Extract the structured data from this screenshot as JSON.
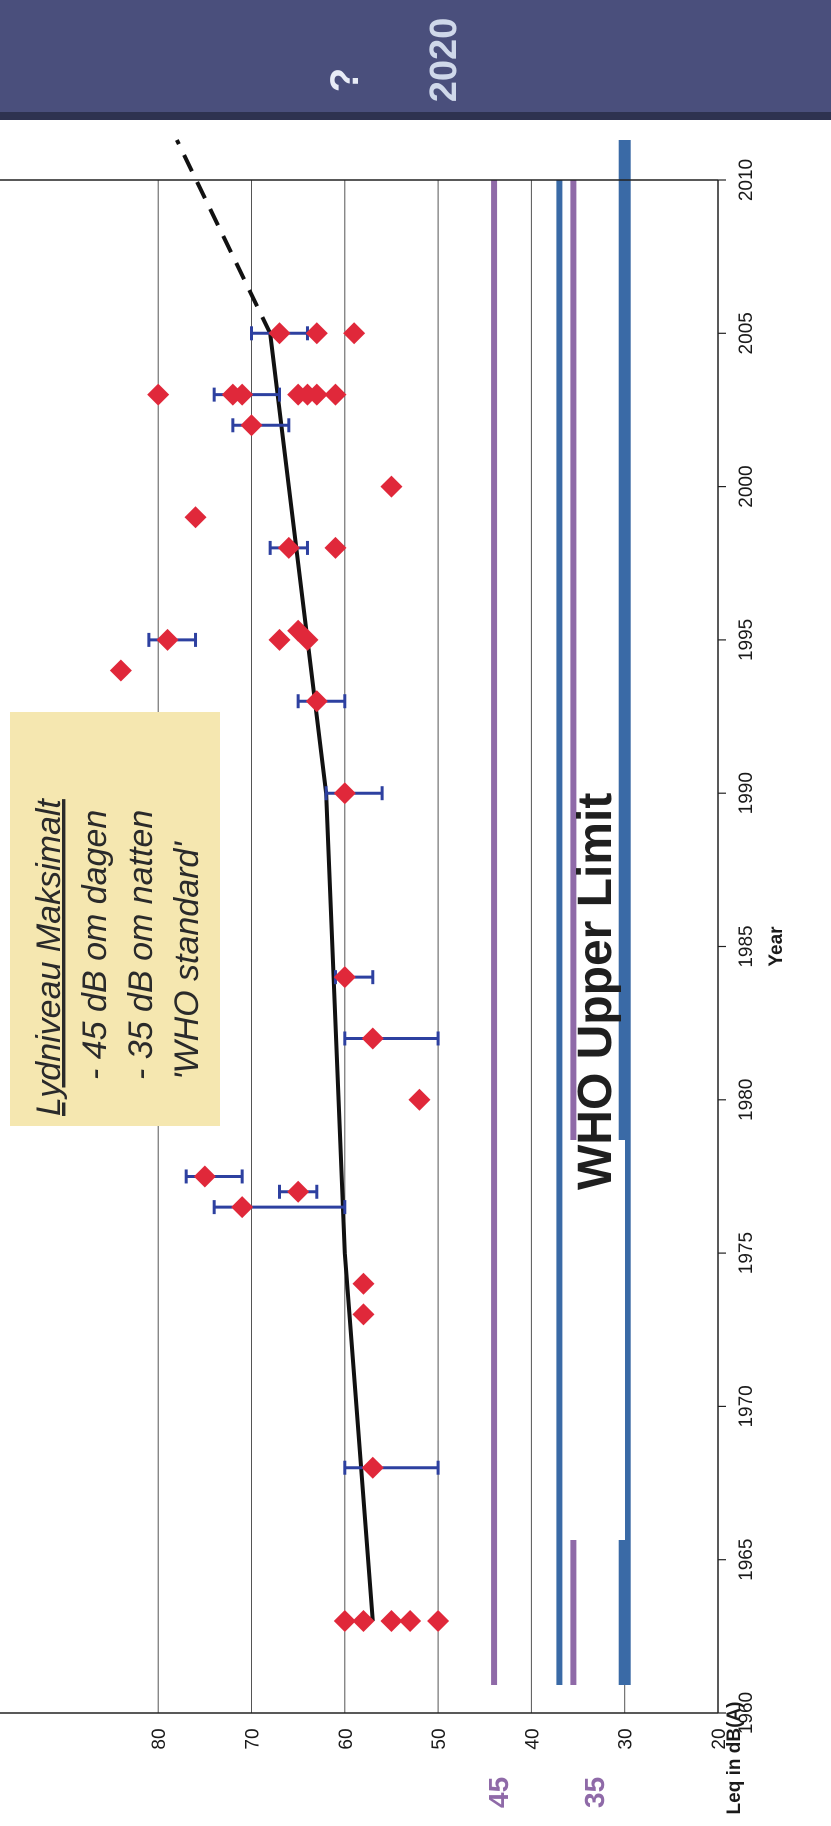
{
  "colors": {
    "point": "#e0283a",
    "errorbar": "#2d40a0",
    "trend": "#111111",
    "limit_purple": "#8f6aa8",
    "limit_blue": "#3a6aa6",
    "grid": "#555555",
    "note_bg": "#f5e7b0",
    "banner": "#4a4f7c"
  },
  "banner": {
    "year": "2020",
    "question": "?"
  },
  "note": {
    "line1": "Lydniveau Maksimalt",
    "line2": "- 45 dB om dagen",
    "line3": "- 35 dB om natten",
    "line4": "'WHO standard'"
  },
  "who_label": "WHO Upper Limit",
  "limit_labels": {
    "day": "45",
    "night": "35"
  },
  "chart_data": {
    "type": "scatter",
    "xlabel": "Year",
    "ylabel": "Leq in dB(A)",
    "xlim": [
      1960,
      2010
    ],
    "ylim": [
      20,
      90
    ],
    "xticks": [
      "1960",
      "1965",
      "1970",
      "1975",
      "1980",
      "1985",
      "1990",
      "1995",
      "2000",
      "2005",
      "2010"
    ],
    "yticks": [
      "20",
      "30",
      "40",
      "50",
      "60",
      "70",
      "80"
    ],
    "grid": true,
    "points": [
      {
        "x": 1963,
        "y": 60
      },
      {
        "x": 1963,
        "y": 58
      },
      {
        "x": 1963,
        "y": 55
      },
      {
        "x": 1963,
        "y": 53
      },
      {
        "x": 1963,
        "y": 50
      },
      {
        "x": 1968,
        "y": 57,
        "err": [
          50,
          60
        ]
      },
      {
        "x": 1973,
        "y": 58
      },
      {
        "x": 1974,
        "y": 58
      },
      {
        "x": 1976.5,
        "y": 71,
        "err": [
          60,
          74
        ]
      },
      {
        "x": 1977,
        "y": 65,
        "err": [
          63,
          67
        ]
      },
      {
        "x": 1977.5,
        "y": 75,
        "err": [
          71,
          77
        ]
      },
      {
        "x": 1980,
        "y": 52
      },
      {
        "x": 1982,
        "y": 57,
        "err": [
          50,
          60
        ]
      },
      {
        "x": 1984,
        "y": 60,
        "err": [
          57,
          61
        ]
      },
      {
        "x": 1990,
        "y": 60,
        "err": [
          56,
          62
        ]
      },
      {
        "x": 1993,
        "y": 63,
        "err": [
          60,
          65
        ]
      },
      {
        "x": 1994,
        "y": 84
      },
      {
        "x": 1995,
        "y": 79,
        "err": [
          76,
          81
        ]
      },
      {
        "x": 1995,
        "y": 67
      },
      {
        "x": 1995,
        "y": 64
      },
      {
        "x": 1995.3,
        "y": 65
      },
      {
        "x": 1998,
        "y": 66,
        "err": [
          64,
          68
        ]
      },
      {
        "x": 1998,
        "y": 61
      },
      {
        "x": 1999,
        "y": 76
      },
      {
        "x": 2000,
        "y": 55
      },
      {
        "x": 2002,
        "y": 70,
        "err": [
          66,
          72
        ]
      },
      {
        "x": 2003,
        "y": 80
      },
      {
        "x": 2003,
        "y": 72,
        "err": [
          67,
          74
        ]
      },
      {
        "x": 2003,
        "y": 71
      },
      {
        "x": 2003,
        "y": 65
      },
      {
        "x": 2003,
        "y": 64
      },
      {
        "x": 2003,
        "y": 63
      },
      {
        "x": 2003,
        "y": 61
      },
      {
        "x": 2005,
        "y": 67,
        "err": [
          64,
          70
        ]
      },
      {
        "x": 2005,
        "y": 63
      },
      {
        "x": 2005,
        "y": 59
      }
    ],
    "trend": [
      {
        "x": 1963,
        "y": 57
      },
      {
        "x": 1975,
        "y": 60
      },
      {
        "x": 1990,
        "y": 62
      },
      {
        "x": 2000,
        "y": 66
      },
      {
        "x": 2005,
        "y": 68
      }
    ],
    "trend_projection": [
      {
        "x": 2005,
        "y": 68
      },
      {
        "x": 2010,
        "y": 78
      }
    ],
    "reference_lines": [
      {
        "y": 44,
        "color": "#8f6aa8"
      },
      {
        "y": 37,
        "color": "#3a6aa6"
      },
      {
        "y": 35.5,
        "color": "#8f6aa8"
      },
      {
        "y": 30,
        "color": "#3a6aa6"
      }
    ]
  }
}
